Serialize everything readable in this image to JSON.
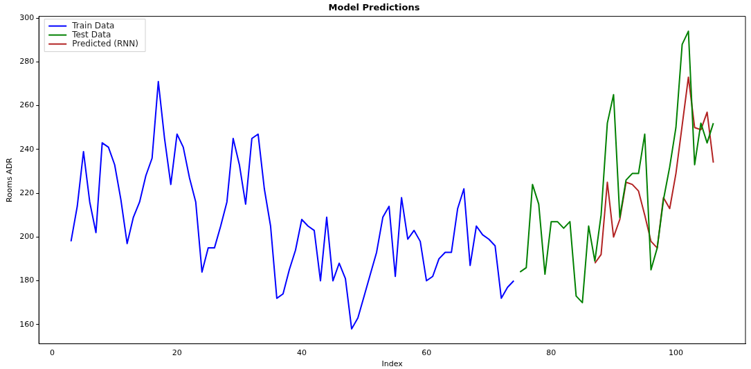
{
  "chart_data": {
    "type": "line",
    "title": "Model Predictions",
    "xlabel": "Index",
    "ylabel": "Rooms ADR",
    "xlim": [
      -2.15,
      111.15
    ],
    "ylim": [
      151.2,
      300.8
    ],
    "xticks": [
      0,
      20,
      40,
      60,
      80,
      100
    ],
    "yticks": [
      160,
      180,
      200,
      220,
      240,
      260,
      280,
      300
    ],
    "grid": false,
    "legend": "top left",
    "marker": "none",
    "line_style": "solid",
    "series": [
      {
        "name": "Train Data",
        "color": "#0000ff",
        "x": [
          3,
          4,
          5,
          6,
          7,
          8,
          9,
          10,
          11,
          12,
          13,
          14,
          15,
          16,
          17,
          18,
          19,
          20,
          21,
          22,
          23,
          24,
          25,
          26,
          27,
          28,
          29,
          30,
          31,
          32,
          33,
          34,
          35,
          36,
          37,
          38,
          39,
          40,
          41,
          42,
          43,
          44,
          45,
          46,
          47,
          48,
          49,
          50,
          51,
          52,
          53,
          54,
          55,
          56,
          57,
          58,
          59,
          60,
          61,
          62,
          63,
          64,
          65,
          66,
          67,
          68,
          69,
          70,
          71,
          72,
          73,
          74
        ],
        "values": [
          198,
          214,
          239,
          216,
          202,
          243,
          241,
          233,
          217,
          197,
          209,
          216,
          228,
          236,
          271,
          245,
          224,
          247,
          241,
          227,
          216,
          184,
          195,
          195,
          205,
          216,
          245,
          233,
          215,
          245,
          247,
          222,
          205,
          172,
          174,
          185,
          194,
          208,
          205,
          203,
          180,
          209,
          180,
          188,
          181,
          158,
          163,
          173,
          183,
          193,
          209,
          214,
          182,
          218,
          199,
          203,
          198,
          180,
          182,
          190,
          193,
          193,
          213,
          222,
          187,
          205,
          201,
          199,
          196,
          172,
          177,
          180
        ]
      },
      {
        "name": "Test Data",
        "color": "#008000",
        "x": [
          75,
          76,
          77,
          78,
          79,
          80,
          81,
          82,
          83,
          84,
          85,
          86,
          87,
          88,
          89,
          90,
          91,
          92,
          93,
          94,
          95,
          96,
          97,
          98,
          99,
          100,
          101,
          102,
          103,
          104,
          105,
          106
        ],
        "values": [
          184,
          186,
          224,
          215,
          183,
          207,
          207,
          204,
          207,
          173,
          170,
          205,
          189,
          210,
          252,
          265,
          209,
          226,
          229,
          229,
          247,
          185,
          195,
          217,
          232,
          250,
          288,
          294,
          233,
          252,
          243,
          252
        ]
      },
      {
        "name": "Predicted (RNN)",
        "color": "#b22222",
        "x": [
          87,
          88,
          89,
          90,
          91,
          92,
          93,
          94,
          95,
          96,
          97,
          98,
          99,
          100,
          101,
          102,
          103,
          104,
          105,
          106
        ],
        "values": [
          188,
          192,
          225,
          200,
          208,
          225,
          224,
          221,
          210,
          198,
          195,
          218,
          213,
          229,
          251,
          273,
          250,
          249,
          257,
          234
        ]
      }
    ]
  }
}
